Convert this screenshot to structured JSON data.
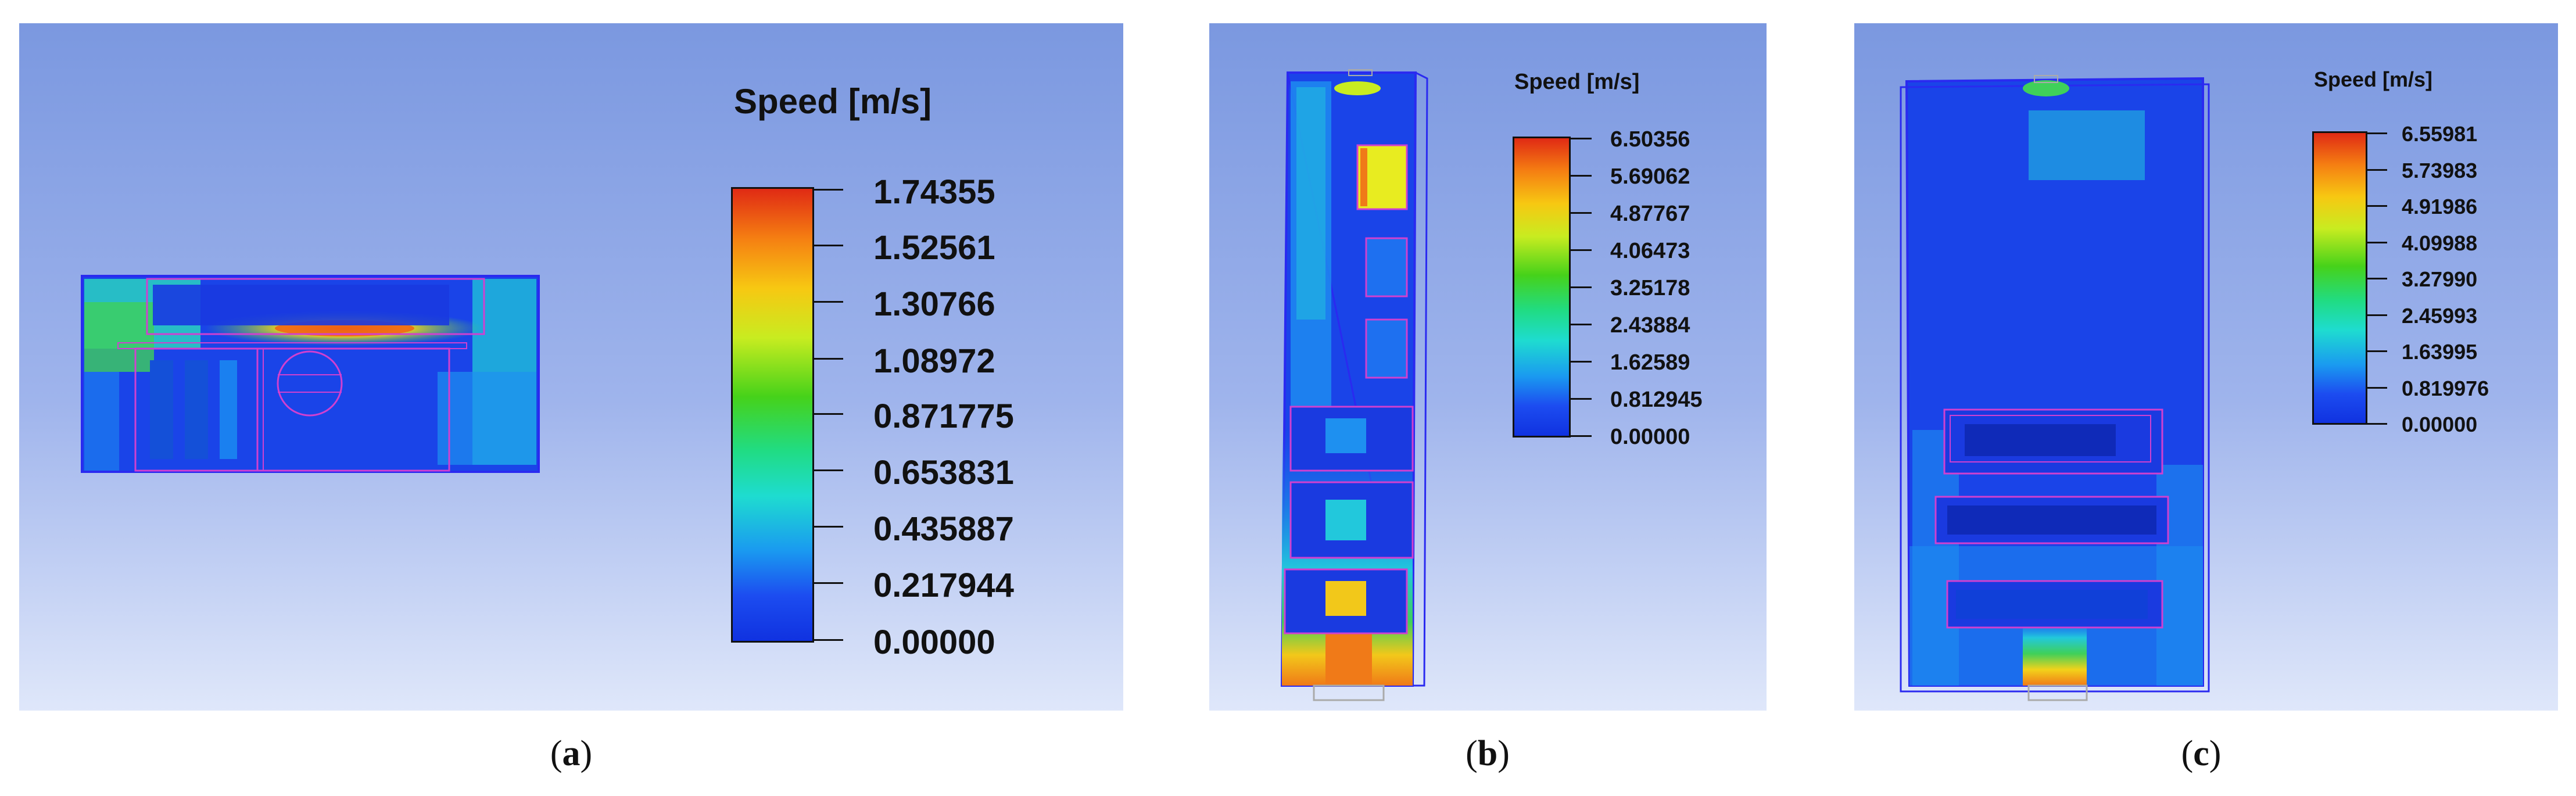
{
  "panels": [
    {
      "id": "a",
      "legend_title": "Speed [m/s]",
      "legend_values": [
        "1.74355",
        "1.52561",
        "1.30766",
        "1.08972",
        "0.871775",
        "0.653831",
        "0.435887",
        "0.217944",
        "0.00000"
      ],
      "caption_label": "a"
    },
    {
      "id": "b",
      "legend_title": "Speed [m/s]",
      "legend_values": [
        "6.50356",
        "5.69062",
        "4.87767",
        "4.06473",
        "3.25178",
        "2.43884",
        "1.62589",
        "0.812945",
        "0.00000"
      ],
      "caption_label": "b"
    },
    {
      "id": "c",
      "legend_title": "Speed [m/s]",
      "legend_values": [
        "6.55981",
        "5.73983",
        "4.91986",
        "4.09988",
        "3.27990",
        "2.45993",
        "1.63995",
        "0.819976",
        "0.00000"
      ],
      "caption_label": "c"
    }
  ],
  "colors": {
    "outline_blue": "#2a2af0",
    "component_magenta": "#d040d0",
    "background_top": "#7b98e0",
    "background_bottom": "#dfe7fa"
  }
}
